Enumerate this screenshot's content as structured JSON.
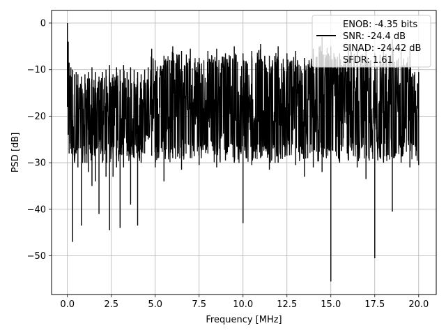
{
  "chart_data": {
    "type": "line",
    "title": "",
    "xlabel": "Frequency [MHz]",
    "ylabel": "PSD [dB]",
    "xlim": [
      -0.9,
      21.0
    ],
    "ylim": [
      -58.3,
      2.7
    ],
    "xticks": [
      0.0,
      2.5,
      5.0,
      7.5,
      10.0,
      12.5,
      15.0,
      17.5,
      20.0
    ],
    "xtick_labels": [
      "0.0",
      "2.5",
      "5.0",
      "7.5",
      "10.0",
      "12.5",
      "15.0",
      "17.5",
      "20.0"
    ],
    "yticks": [
      0,
      -10,
      -20,
      -30,
      -40,
      -50
    ],
    "ytick_labels": [
      "0",
      "−10",
      "−20",
      "−30",
      "−40",
      "−50"
    ],
    "grid": true,
    "legend_position": "top-right",
    "legend_entries": [
      {
        "label": "ENOB: -4.35 bits",
        "line": false
      },
      {
        "label": "SNR: -24.4 dB",
        "line": true
      },
      {
        "label": "SINAD: -24.42 dB",
        "line": false
      },
      {
        "label": "SFDR: 1.61",
        "line": false
      }
    ],
    "series": [
      {
        "color": "#000000",
        "envelope": true,
        "x": [
          0.0,
          0.05,
          0.1,
          0.2,
          0.3,
          0.4,
          0.5,
          0.6,
          0.8,
          1.0,
          1.2,
          1.4,
          1.6,
          1.8,
          2.0,
          2.2,
          2.4,
          2.6,
          2.8,
          3.0,
          3.2,
          3.4,
          3.6,
          3.8,
          4.0,
          4.2,
          4.4,
          4.6,
          4.8,
          5.0,
          5.5,
          6.0,
          6.5,
          7.0,
          7.5,
          8.0,
          8.5,
          9.0,
          9.5,
          10.0,
          10.5,
          11.0,
          11.5,
          12.0,
          12.5,
          13.0,
          13.5,
          14.0,
          14.5,
          15.0,
          15.5,
          16.0,
          16.5,
          17.0,
          17.5,
          18.0,
          18.5,
          19.0,
          19.5,
          20.0
        ],
        "upper": [
          0.0,
          -4.0,
          -8.5,
          -9.5,
          -10.0,
          -11.0,
          -10.5,
          -11.0,
          -11.5,
          -11.0,
          -10.5,
          -9.5,
          -10.5,
          -11.5,
          -10.5,
          -10.0,
          -9.0,
          -11.0,
          -9.5,
          -10.0,
          -9.0,
          -10.5,
          -9.5,
          -10.0,
          -10.5,
          -11.0,
          -10.0,
          -9.5,
          -5.5,
          -8.0,
          -7.0,
          -5.0,
          -6.0,
          -5.5,
          -7.5,
          -6.0,
          -5.5,
          -6.5,
          -5.0,
          -6.5,
          -6.0,
          -4.5,
          -7.0,
          -5.0,
          -6.5,
          -6.0,
          -7.5,
          -5.5,
          -3.0,
          -5.0,
          -6.5,
          -4.5,
          -6.0,
          -5.0,
          -6.5,
          -5.0,
          -3.5,
          -6.0,
          -5.5,
          -10.5
        ],
        "lower": [
          -18.0,
          -24.0,
          -28.0,
          -27.0,
          -47.0,
          -30.0,
          -28.0,
          -31.0,
          -43.5,
          -30.0,
          -32.0,
          -35.0,
          -34.0,
          -41.0,
          -30.0,
          -33.0,
          -44.5,
          -33.0,
          -31.0,
          -44.0,
          -31.0,
          -28.5,
          -39.0,
          -29.0,
          -43.5,
          -30.0,
          -28.0,
          -25.0,
          -28.5,
          -31.0,
          -34.0,
          -29.0,
          -31.5,
          -29.0,
          -30.5,
          -28.0,
          -31.0,
          -29.5,
          -30.0,
          -43.0,
          -30.5,
          -29.0,
          -31.5,
          -30.0,
          -28.5,
          -30.5,
          -33.0,
          -31.0,
          -32.0,
          -55.5,
          -30.0,
          -29.5,
          -31.0,
          -33.5,
          -50.5,
          -30.0,
          -40.5,
          -30.0,
          -31.0,
          -30.5
        ]
      }
    ]
  }
}
